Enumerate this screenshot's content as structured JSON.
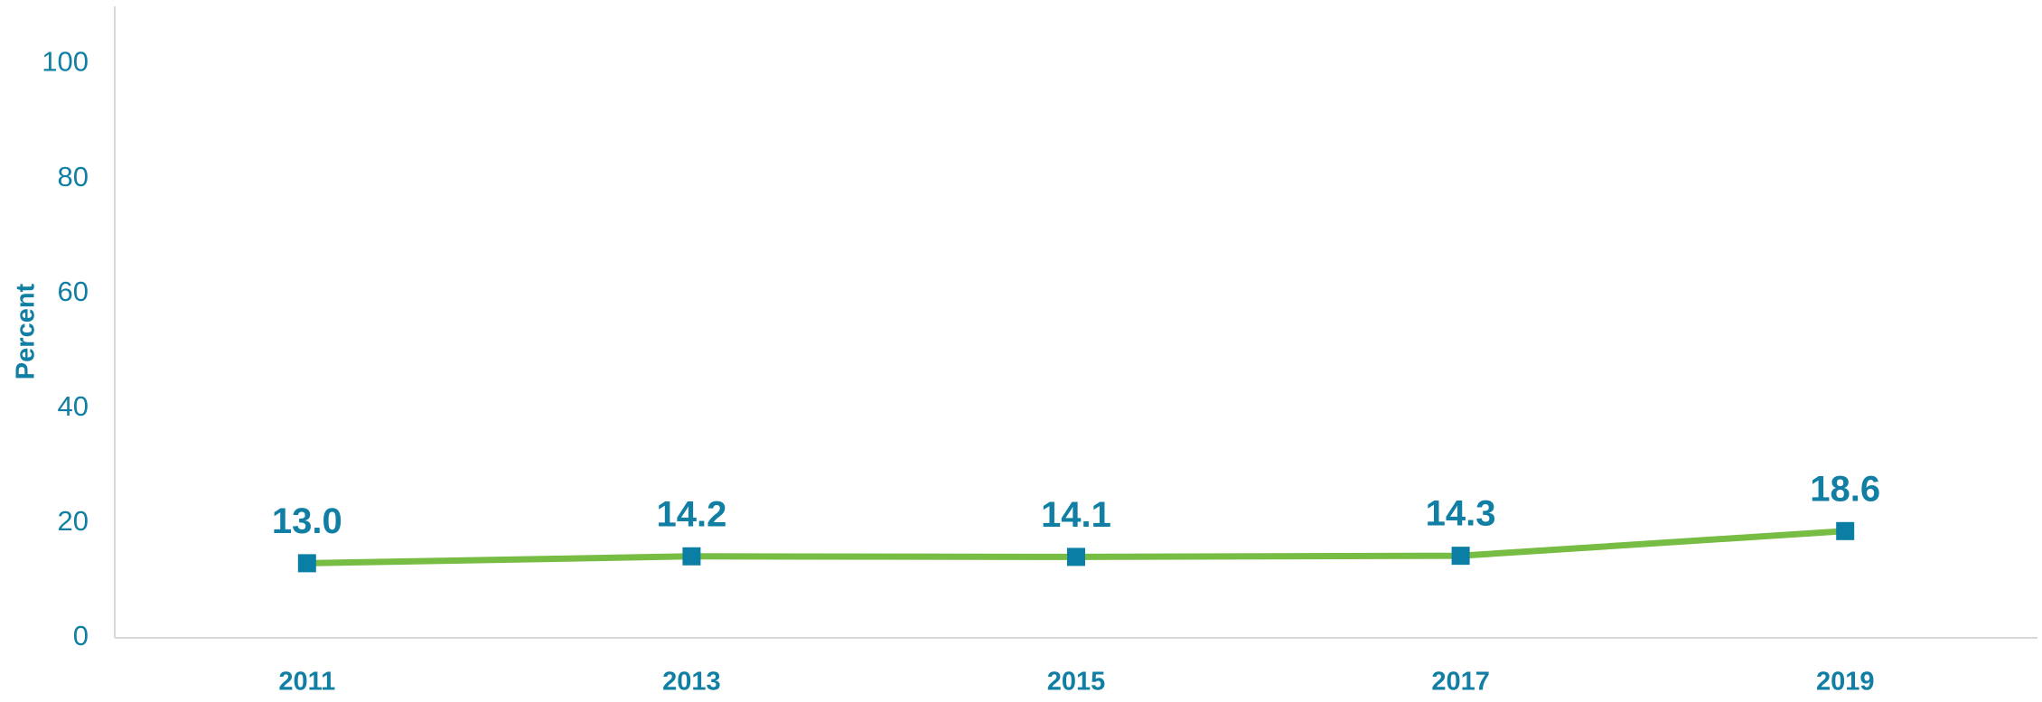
{
  "chart_data": {
    "type": "line",
    "y_label": "Percent",
    "categories": [
      "2011",
      "2013",
      "2015",
      "2017",
      "2019"
    ],
    "values": [
      13.0,
      14.2,
      14.1,
      14.3,
      18.6
    ],
    "value_labels": [
      "13.0",
      "14.2",
      "14.1",
      "14.3",
      "18.6"
    ],
    "color": "#77bc43",
    "marker_color": "#0b7ea6",
    "ylim": [
      0,
      110
    ],
    "yticks": [
      0,
      20,
      40,
      60,
      80,
      100
    ],
    "grid": false
  }
}
